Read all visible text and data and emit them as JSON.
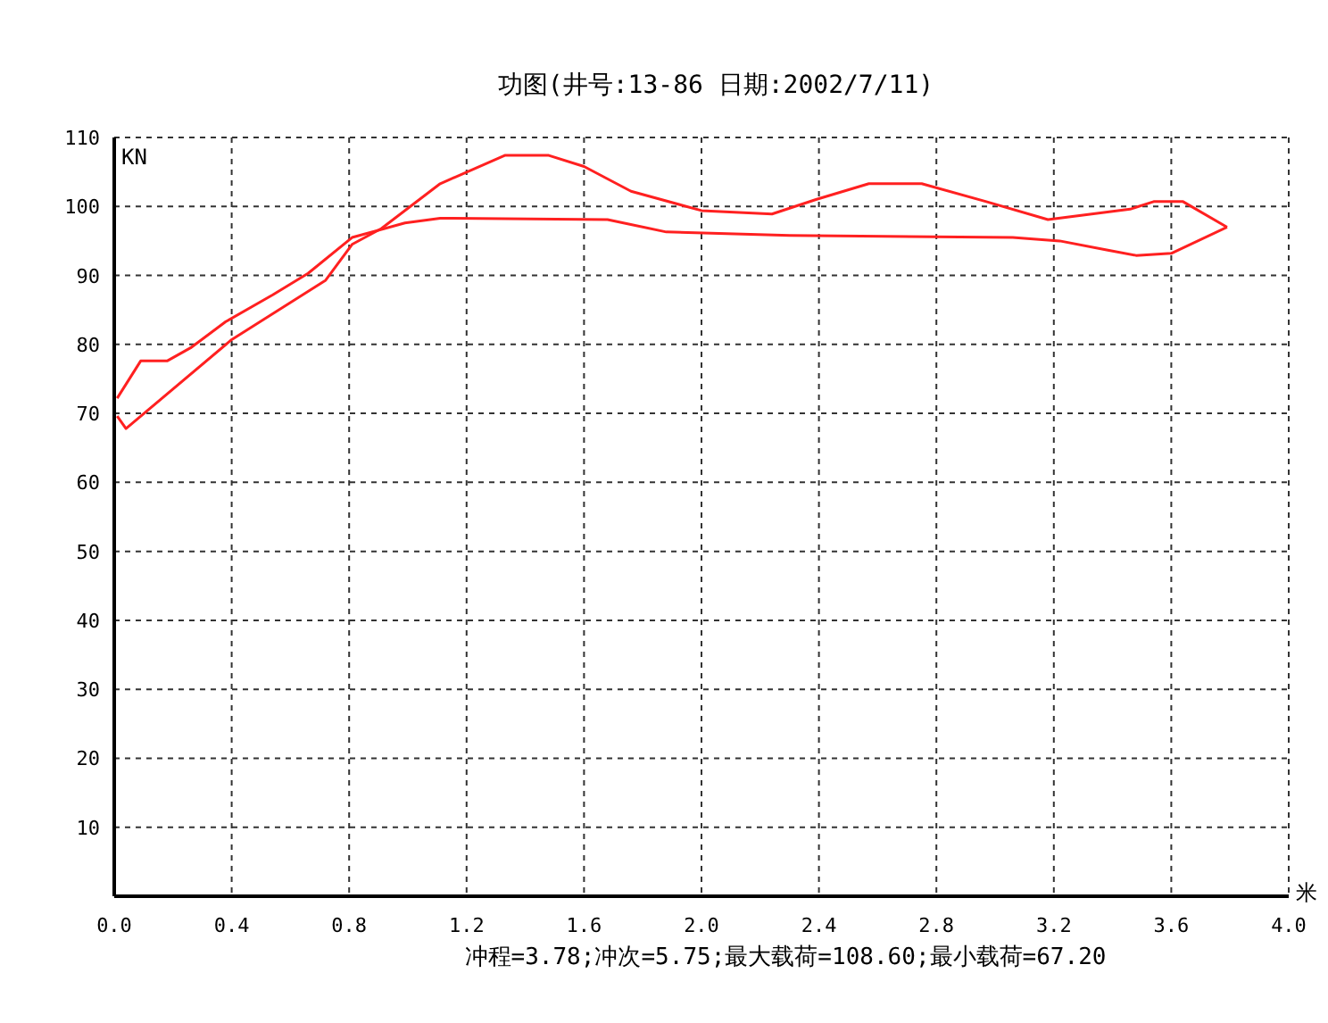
{
  "chart_data": {
    "type": "line",
    "title": "功图(井号:13-86 日期:2002/7/11)",
    "xlabel": "米",
    "ylabel": "KN",
    "annotations": [
      "冲程=3.78;冲次=5.75;最大载荷=108.60;最小载荷=67.20"
    ],
    "xlim": [
      0,
      4
    ],
    "ylim": [
      0,
      110
    ],
    "xticks": [
      {
        "value": 0,
        "label": "0.0"
      },
      0.4,
      0.8,
      1.2,
      1.6,
      {
        "value": 2,
        "label": "2.0"
      },
      2.4,
      2.8,
      3.2,
      3.6,
      {
        "value": 4,
        "label": "4.0"
      }
    ],
    "yticks": [
      {
        "value": 0,
        "label": null
      },
      10,
      20,
      30,
      40,
      50,
      60,
      70,
      80,
      90,
      100,
      110
    ],
    "grid": true,
    "marker": "none",
    "line_style": "solid",
    "series": [
      {
        "color": "#ff2020",
        "x": [
          0.01,
          0.04,
          0.4,
          0.72,
          0.81,
          0.91,
          1.11,
          1.33,
          1.48,
          1.6,
          1.76,
          2.0,
          2.24,
          2.39,
          2.57,
          2.75,
          2.97,
          3.18,
          3.46,
          3.54,
          3.64,
          3.79
        ],
        "values": [
          69.6,
          67.8,
          80.7,
          89.3,
          94.5,
          96.8,
          103.3,
          107.4,
          107.4,
          105.8,
          102.2,
          99.4,
          98.9,
          101,
          103.3,
          103.3,
          100.7,
          98.1,
          99.6,
          100.7,
          100.7,
          97
        ]
      },
      {
        "color": "#ff2020",
        "x": [
          0.01,
          0.09,
          0.18,
          0.26,
          0.38,
          0.54,
          0.66,
          0.81,
          0.99,
          1.11,
          1.68,
          1.88,
          2.3,
          3.06,
          3.22,
          3.38,
          3.48,
          3.6,
          3.79
        ],
        "values": [
          72.2,
          77.6,
          77.6,
          79.5,
          83.3,
          87.2,
          90.3,
          95.5,
          97.6,
          98.3,
          98.1,
          96.3,
          95.8,
          95.5,
          95,
          93.7,
          92.9,
          93.2,
          97
        ]
      }
    ]
  }
}
